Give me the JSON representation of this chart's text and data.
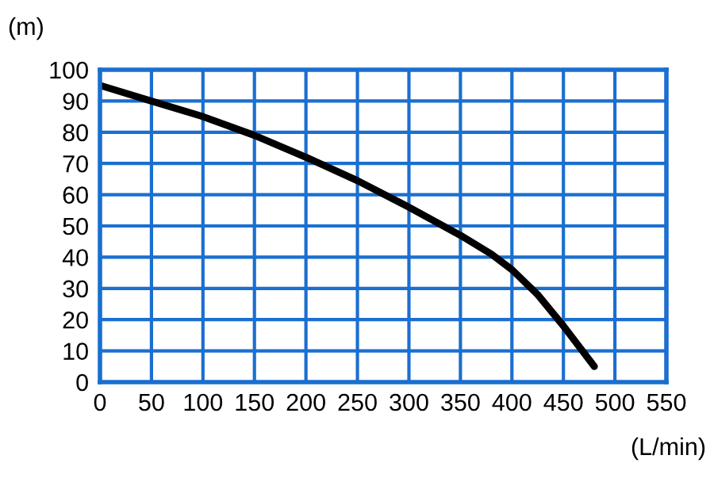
{
  "chart_data": {
    "type": "line",
    "ylabel": "(m)",
    "xlabel": "(L/min)",
    "x": [
      0,
      50,
      100,
      150,
      200,
      250,
      300,
      350,
      380,
      400,
      425,
      450,
      480
    ],
    "series": [
      {
        "color": "#000000",
        "values": [
          95,
          90,
          85,
          79,
          72,
          64.5,
          56,
          47,
          41,
          36,
          28,
          18,
          5
        ]
      }
    ],
    "xlim": [
      0,
      550
    ],
    "xticks": [
      0,
      50,
      100,
      150,
      200,
      250,
      300,
      350,
      400,
      450,
      500,
      550
    ],
    "ylim": [
      0,
      100
    ],
    "yticks": [
      0,
      10,
      20,
      30,
      40,
      50,
      60,
      70,
      80,
      90,
      100
    ],
    "grid": true,
    "marker": "none",
    "line_style": "solid",
    "legend": false
  }
}
